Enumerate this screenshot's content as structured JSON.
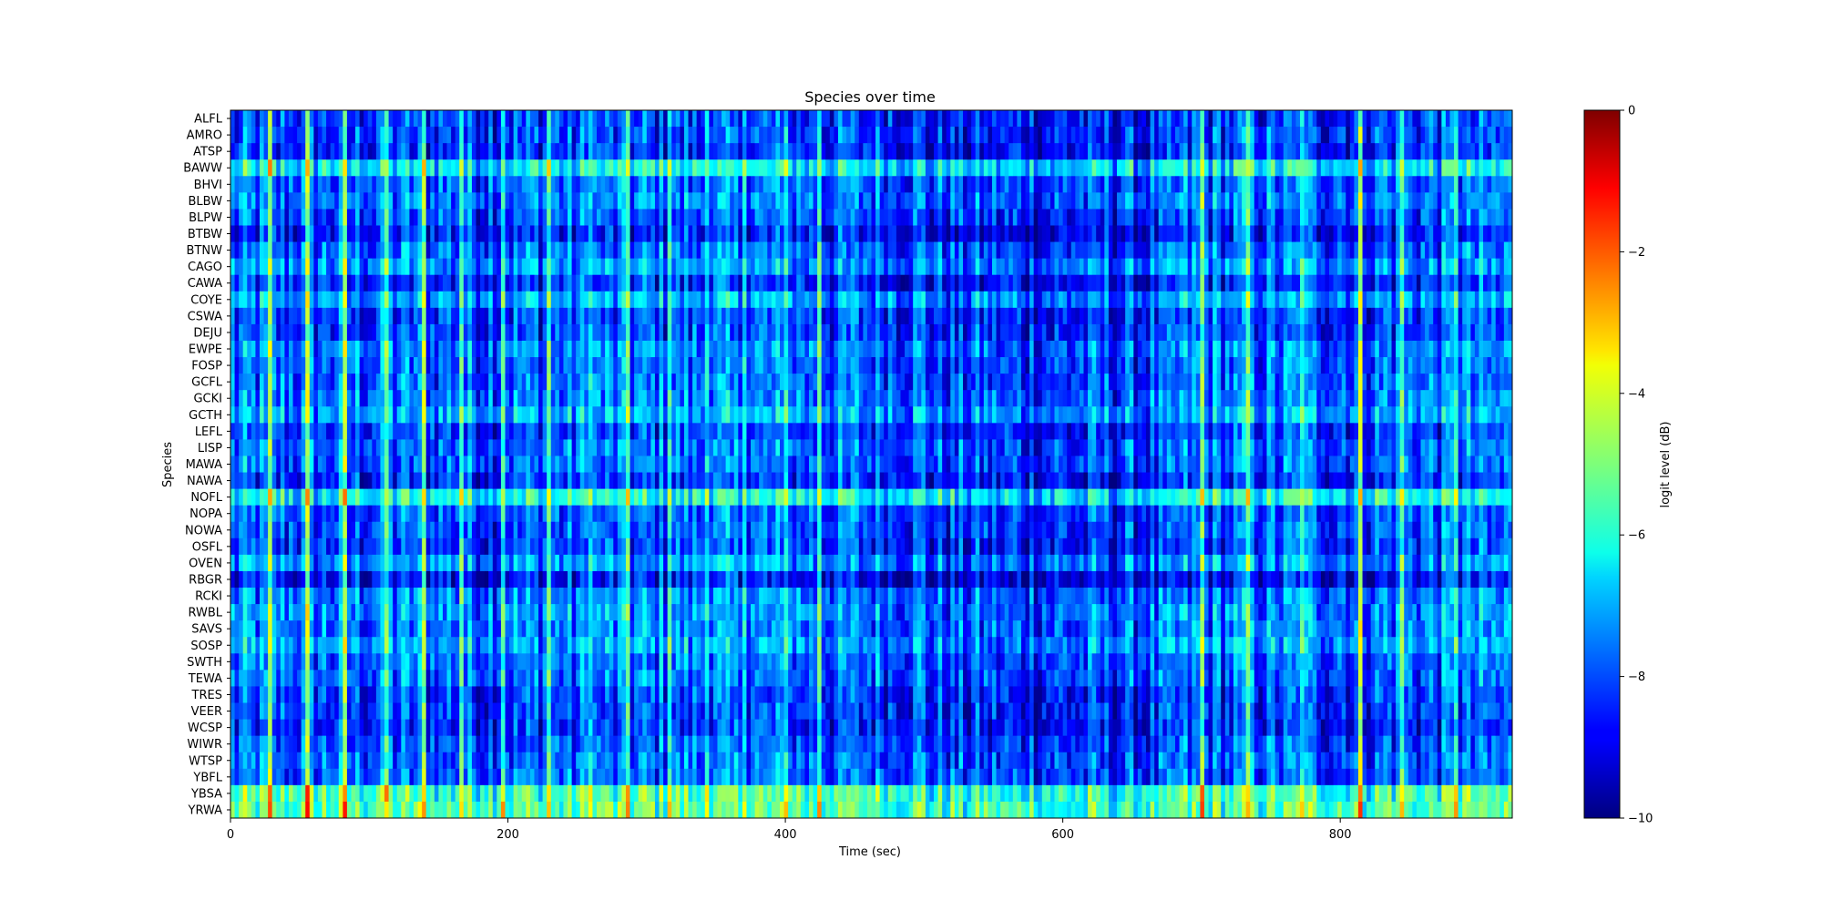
{
  "chart_data": {
    "type": "heatmap",
    "title": "Species over time",
    "xlabel": "Time (sec)",
    "ylabel": "Species",
    "xlim": [
      0,
      924
    ],
    "x_ticks": [
      0,
      200,
      400,
      600,
      800
    ],
    "step_sec": 3,
    "species": [
      "ALFL",
      "AMRO",
      "ATSP",
      "BAWW",
      "BHVI",
      "BLBW",
      "BLPW",
      "BTBW",
      "BTNW",
      "CAGO",
      "CAWA",
      "COYE",
      "CSWA",
      "DEJU",
      "EWPE",
      "FOSP",
      "GCFL",
      "GCKI",
      "GCTH",
      "LEFL",
      "LISP",
      "MAWA",
      "NAWA",
      "NOFL",
      "NOPA",
      "NOWA",
      "OSFL",
      "OVEN",
      "RBGR",
      "RCKI",
      "RWBL",
      "SAVS",
      "SOSP",
      "SWTH",
      "TEWA",
      "TRES",
      "VEER",
      "WCSP",
      "WIWR",
      "WTSP",
      "YBFL",
      "YBSA",
      "YRWA"
    ],
    "species_baseline_db": [
      -8.8,
      -8.8,
      -9.0,
      -7.0,
      -8.4,
      -8.2,
      -8.6,
      -9.2,
      -8.4,
      -8.0,
      -9.0,
      -7.8,
      -8.8,
      -8.8,
      -8.2,
      -8.4,
      -8.4,
      -8.2,
      -7.8,
      -8.8,
      -8.4,
      -8.4,
      -9.0,
      -6.8,
      -8.6,
      -8.6,
      -8.8,
      -8.0,
      -9.4,
      -8.2,
      -8.0,
      -8.2,
      -7.8,
      -8.4,
      -8.4,
      -8.8,
      -8.8,
      -9.0,
      -8.6,
      -8.4,
      -8.4,
      -6.2,
      -6.0
    ],
    "peak_times_sec": [
      27,
      54,
      81,
      111,
      138,
      165,
      195,
      228,
      258,
      285,
      315,
      342,
      369,
      399,
      423,
      699,
      732,
      771,
      813,
      843,
      882
    ],
    "colorbar": {
      "label": "logit level (dB)",
      "min": -10,
      "max": 0,
      "ticks": [
        0,
        -2,
        -4,
        -6,
        -8,
        -10
      ],
      "colormap": "jet"
    }
  }
}
